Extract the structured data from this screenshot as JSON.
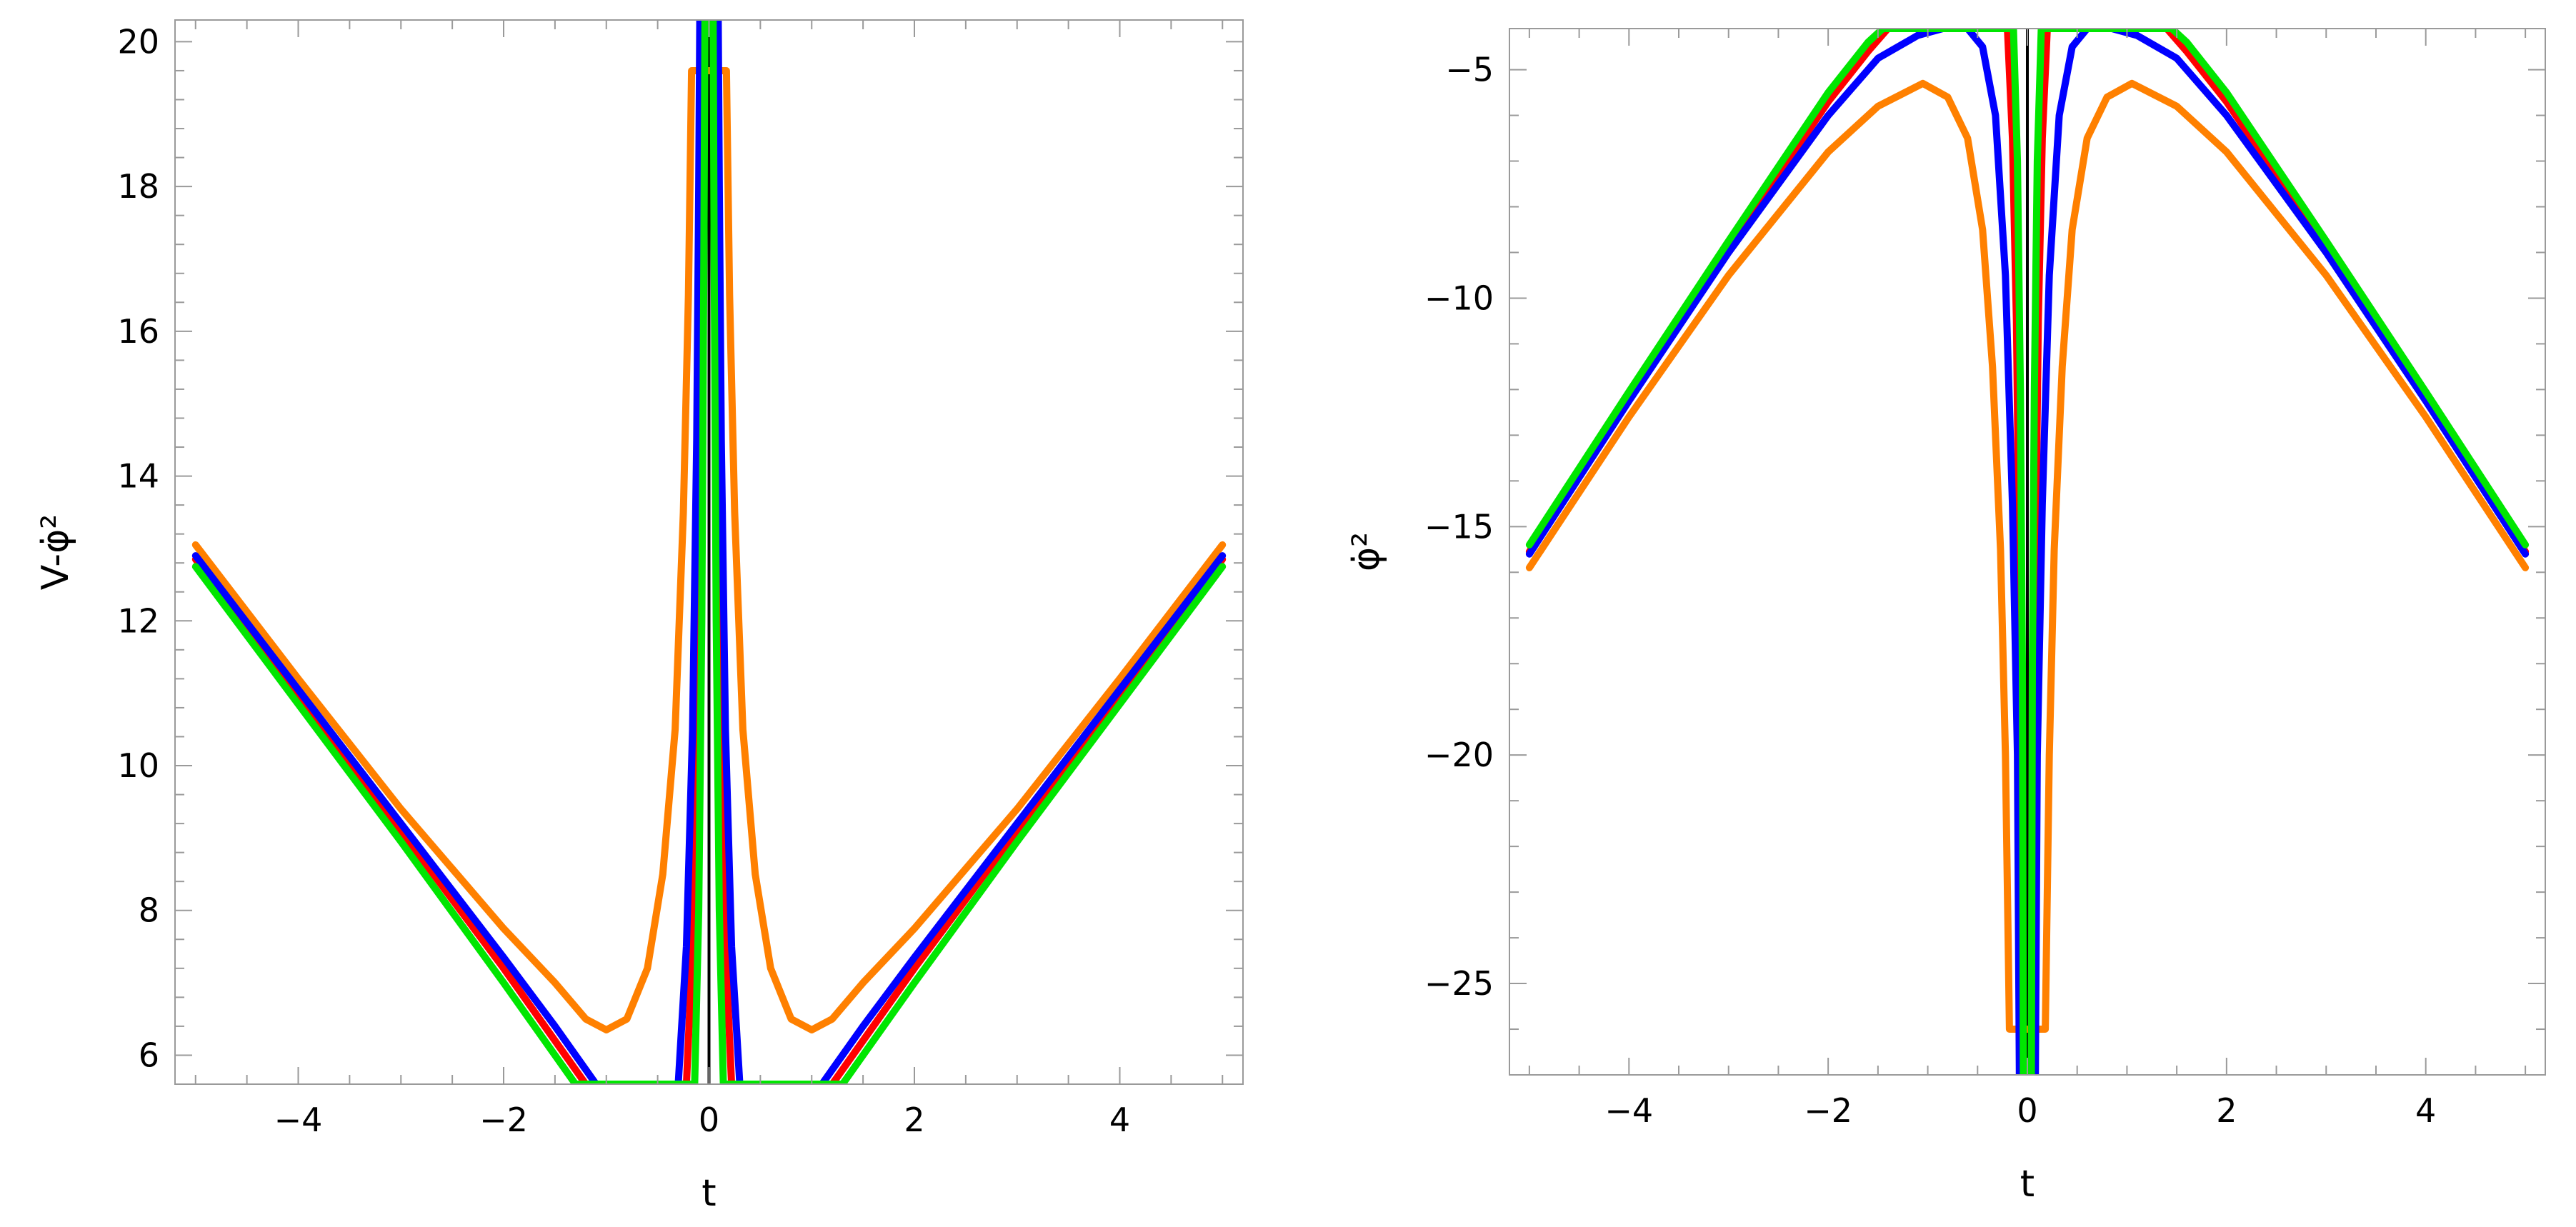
{
  "chart_data": [
    {
      "type": "line",
      "xlabel": "t",
      "ylabel": "V-φ̇²",
      "xlim": [
        -5.2,
        5.2
      ],
      "ylim": [
        5.6,
        20.3
      ],
      "xticks": [
        -4,
        -2,
        0,
        2,
        4
      ],
      "xtick_labels": [
        "−4",
        "−2",
        "0",
        "2",
        "4"
      ],
      "yticks": [
        6,
        8,
        10,
        12,
        14,
        16,
        18,
        20
      ],
      "ytick_labels": [
        "6",
        "8",
        "10",
        "12",
        "14",
        "16",
        "18",
        "20"
      ],
      "grid": false,
      "vertical_line_at": 0,
      "series": [
        {
          "color": "#ff8000",
          "points": [
            [
              -5,
              13.05
            ],
            [
              -4,
              11.2
            ],
            [
              -3,
              9.4
            ],
            [
              -2,
              7.75
            ],
            [
              -1.5,
              7.0
            ],
            [
              -1.2,
              6.5
            ],
            [
              -1.0,
              6.35
            ],
            [
              -0.8,
              6.5
            ],
            [
              -0.6,
              7.2
            ],
            [
              -0.45,
              8.5
            ],
            [
              -0.33,
              10.5
            ],
            [
              -0.25,
              13.5
            ],
            [
              -0.2,
              16.5
            ],
            [
              -0.17,
              19.6
            ],
            [
              0.17,
              19.6
            ],
            [
              0.2,
              16.5
            ],
            [
              0.25,
              13.5
            ],
            [
              0.33,
              10.5
            ],
            [
              0.45,
              8.5
            ],
            [
              0.6,
              7.2
            ],
            [
              0.8,
              6.5
            ],
            [
              1.0,
              6.35
            ],
            [
              1.2,
              6.5
            ],
            [
              1.5,
              7.0
            ],
            [
              2,
              7.75
            ],
            [
              3,
              9.4
            ],
            [
              4,
              11.2
            ],
            [
              5,
              13.05
            ]
          ]
        },
        {
          "color": "#ff0000",
          "points": [
            [
              -5,
              12.85
            ],
            [
              -4,
              11.0
            ],
            [
              -3,
              9.1
            ],
            [
              -2,
              7.2
            ],
            [
              -1.5,
              6.2
            ],
            [
              -1.2,
              5.6
            ],
            [
              -0.22,
              5.6
            ],
            [
              -0.16,
              7.5
            ],
            [
              -0.12,
              11
            ],
            [
              -0.08,
              16
            ],
            [
              -0.06,
              20.3
            ],
            [
              0.06,
              20.3
            ],
            [
              0.08,
              16
            ],
            [
              0.12,
              11
            ],
            [
              0.16,
              7.5
            ],
            [
              0.22,
              5.6
            ],
            [
              1.2,
              5.6
            ],
            [
              1.5,
              6.2
            ],
            [
              2,
              7.2
            ],
            [
              3,
              9.1
            ],
            [
              4,
              11.0
            ],
            [
              5,
              12.85
            ]
          ]
        },
        {
          "color": "#0000ff",
          "points": [
            [
              -5,
              12.9
            ],
            [
              -4,
              11.05
            ],
            [
              -3,
              9.2
            ],
            [
              -2,
              7.35
            ],
            [
              -1.5,
              6.4
            ],
            [
              -1.2,
              5.8
            ],
            [
              -1.1,
              5.6
            ],
            [
              -0.3,
              5.6
            ],
            [
              -0.22,
              7.5
            ],
            [
              -0.16,
              10.5
            ],
            [
              -0.12,
              14.5
            ],
            [
              -0.1,
              18
            ],
            [
              -0.09,
              20.3
            ],
            [
              0.09,
              20.3
            ],
            [
              0.1,
              18
            ],
            [
              0.12,
              14.5
            ],
            [
              0.16,
              10.5
            ],
            [
              0.22,
              7.5
            ],
            [
              0.3,
              5.6
            ],
            [
              1.1,
              5.6
            ],
            [
              1.2,
              5.8
            ],
            [
              1.5,
              6.4
            ],
            [
              2,
              7.35
            ],
            [
              3,
              9.2
            ],
            [
              4,
              11.05
            ],
            [
              5,
              12.9
            ]
          ]
        },
        {
          "color": "#00e600",
          "points": [
            [
              -5,
              12.75
            ],
            [
              -4,
              10.85
            ],
            [
              -3,
              8.95
            ],
            [
              -2,
              7.0
            ],
            [
              -1.5,
              6.0
            ],
            [
              -1.3,
              5.6
            ],
            [
              -0.14,
              5.6
            ],
            [
              -0.1,
              8
            ],
            [
              -0.07,
              12
            ],
            [
              -0.05,
              17
            ],
            [
              -0.04,
              20.3
            ],
            [
              0.04,
              20.3
            ],
            [
              0.05,
              17
            ],
            [
              0.07,
              12
            ],
            [
              0.1,
              8
            ],
            [
              0.14,
              5.6
            ],
            [
              1.3,
              5.6
            ],
            [
              1.5,
              6.0
            ],
            [
              2,
              7.0
            ],
            [
              3,
              8.95
            ],
            [
              4,
              10.85
            ],
            [
              5,
              12.75
            ]
          ]
        }
      ]
    },
    {
      "type": "line",
      "xlabel": "t",
      "ylabel": "φ̇²",
      "xlim": [
        -5.2,
        5.2
      ],
      "ylim": [
        -27,
        -4.1
      ],
      "xticks": [
        -4,
        -2,
        0,
        2,
        4
      ],
      "xtick_labels": [
        "−4",
        "−2",
        "0",
        "2",
        "4"
      ],
      "yticks": [
        -5,
        -10,
        -15,
        -20,
        -25
      ],
      "ytick_labels": [
        "−5",
        "−10",
        "−15",
        "−20",
        "−25"
      ],
      "grid": false,
      "vertical_line_at": 0,
      "series": [
        {
          "color": "#ff8000",
          "points": [
            [
              -5,
              -15.9
            ],
            [
              -4,
              -12.6
            ],
            [
              -3,
              -9.5
            ],
            [
              -2,
              -6.8
            ],
            [
              -1.5,
              -5.8
            ],
            [
              -1.05,
              -5.3
            ],
            [
              -0.8,
              -5.6
            ],
            [
              -0.6,
              -6.5
            ],
            [
              -0.45,
              -8.5
            ],
            [
              -0.35,
              -11.5
            ],
            [
              -0.27,
              -15.5
            ],
            [
              -0.22,
              -20
            ],
            [
              -0.18,
              -26
            ],
            [
              0.18,
              -26
            ],
            [
              0.22,
              -20
            ],
            [
              0.27,
              -15.5
            ],
            [
              0.35,
              -11.5
            ],
            [
              0.45,
              -8.5
            ],
            [
              0.6,
              -6.5
            ],
            [
              0.8,
              -5.6
            ],
            [
              1.05,
              -5.3
            ],
            [
              1.5,
              -5.8
            ],
            [
              2,
              -6.8
            ],
            [
              3,
              -9.5
            ],
            [
              4,
              -12.6
            ],
            [
              5,
              -15.9
            ]
          ]
        },
        {
          "color": "#ff0000",
          "points": [
            [
              -5,
              -15.55
            ],
            [
              -4,
              -12.2
            ],
            [
              -3,
              -8.9
            ],
            [
              -2,
              -5.7
            ],
            [
              -1.6,
              -4.6
            ],
            [
              -1.4,
              -4.1
            ],
            [
              -0.2,
              -4.1
            ],
            [
              -0.15,
              -6.5
            ],
            [
              -0.11,
              -10.5
            ],
            [
              -0.08,
              -16
            ],
            [
              -0.06,
              -21
            ],
            [
              -0.05,
              -27
            ],
            [
              0.05,
              -27
            ],
            [
              0.06,
              -21
            ],
            [
              0.08,
              -16
            ],
            [
              0.11,
              -10.5
            ],
            [
              0.15,
              -6.5
            ],
            [
              0.2,
              -4.1
            ],
            [
              1.4,
              -4.1
            ],
            [
              1.6,
              -4.6
            ],
            [
              2,
              -5.7
            ],
            [
              3,
              -8.9
            ],
            [
              4,
              -12.2
            ],
            [
              5,
              -15.55
            ]
          ]
        },
        {
          "color": "#0000ff",
          "points": [
            [
              -5,
              -15.6
            ],
            [
              -4,
              -12.25
            ],
            [
              -3,
              -9.0
            ],
            [
              -2,
              -6.0
            ],
            [
              -1.5,
              -4.75
            ],
            [
              -1.1,
              -4.25
            ],
            [
              -0.85,
              -4.1
            ],
            [
              -0.6,
              -4.1
            ],
            [
              -0.45,
              -4.5
            ],
            [
              -0.32,
              -6
            ],
            [
              -0.22,
              -9.5
            ],
            [
              -0.15,
              -14.5
            ],
            [
              -0.1,
              -20
            ],
            [
              -0.08,
              -27
            ],
            [
              0.08,
              -27
            ],
            [
              0.1,
              -20
            ],
            [
              0.15,
              -14.5
            ],
            [
              0.22,
              -9.5
            ],
            [
              0.32,
              -6
            ],
            [
              0.45,
              -4.5
            ],
            [
              0.6,
              -4.1
            ],
            [
              0.85,
              -4.1
            ],
            [
              1.1,
              -4.25
            ],
            [
              1.5,
              -4.75
            ],
            [
              2,
              -6.0
            ],
            [
              3,
              -9.0
            ],
            [
              4,
              -12.25
            ],
            [
              5,
              -15.6
            ]
          ]
        },
        {
          "color": "#00e600",
          "points": [
            [
              -5,
              -15.4
            ],
            [
              -4,
              -12.05
            ],
            [
              -3,
              -8.75
            ],
            [
              -2,
              -5.5
            ],
            [
              -1.6,
              -4.4
            ],
            [
              -1.45,
              -4.1
            ],
            [
              -0.14,
              -4.1
            ],
            [
              -0.1,
              -7
            ],
            [
              -0.07,
              -12
            ],
            [
              -0.05,
              -18
            ],
            [
              -0.04,
              -27
            ],
            [
              0.04,
              -27
            ],
            [
              0.05,
              -18
            ],
            [
              0.07,
              -12
            ],
            [
              0.1,
              -7
            ],
            [
              0.14,
              -4.1
            ],
            [
              1.45,
              -4.1
            ],
            [
              1.6,
              -4.4
            ],
            [
              2,
              -5.5
            ],
            [
              3,
              -8.75
            ],
            [
              4,
              -12.05
            ],
            [
              5,
              -15.4
            ]
          ]
        }
      ]
    }
  ]
}
